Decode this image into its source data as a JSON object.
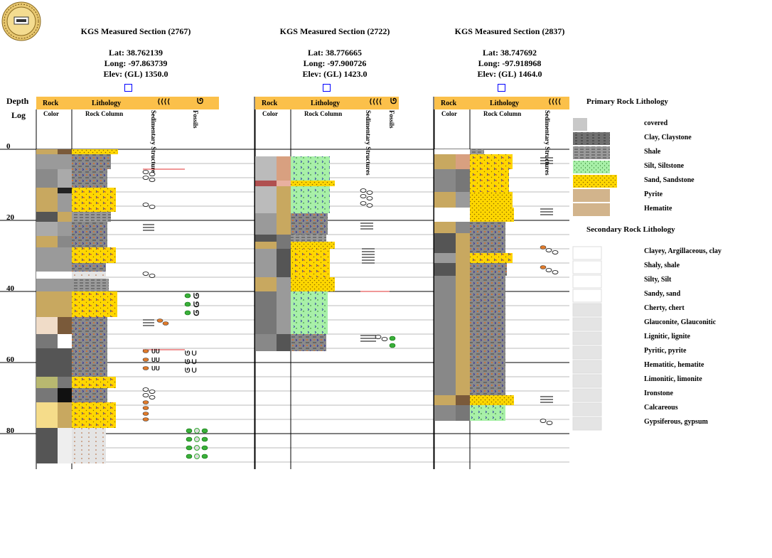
{
  "header_depth": "Depth",
  "header_log": "Log",
  "sections": [
    {
      "title": "KGS Measured Section (2767)",
      "lat": "Lat: 38.762139",
      "long": "Long: -97.863739",
      "elev": "Elev: (GL) 1350.0"
    },
    {
      "title": "KGS Measured Section (2722)",
      "lat": "Lat: 38.776665",
      "long": "Long: -97.900726",
      "elev": "Elev: (GL) 1423.0"
    },
    {
      "title": "KGS Measured Section (2837)",
      "lat": "Lat: 38.747692",
      "long": "Long: -97.918968",
      "elev": "Elev: (GL) 1464.0"
    }
  ],
  "column_headers": {
    "rock": "Rock",
    "lithology": "Lithology",
    "color": "Color",
    "rock_column": "Rock Column",
    "sedimentary_structures": "Sedimentary Structures",
    "fossils": "Fossils"
  },
  "depth_ticks": [
    "0",
    "20",
    "40",
    "60",
    "80"
  ],
  "legend": {
    "primary_title": "Primary Rock Lithology",
    "primary": [
      {
        "label": "covered",
        "color": "#c8c8c8"
      },
      {
        "label": "Clay, Claystone",
        "color": "#707070"
      },
      {
        "label": "Shale",
        "color": "#9a9a9a"
      },
      {
        "label": "Silt, Siltstone",
        "color": "#a8f0a8"
      },
      {
        "label": "Sand, Sandstone",
        "color": "#ffd700"
      },
      {
        "label": "Pyrite",
        "color": "#d2b48c"
      },
      {
        "label": "Hematite",
        "color": "#d2b48c"
      }
    ],
    "secondary_title": "Secondary Rock Lithology",
    "secondary": [
      {
        "label": "Clayey, Argillaceous, clay"
      },
      {
        "label": "Shaly, shale"
      },
      {
        "label": "Silty, Silt"
      },
      {
        "label": "Sandy, sand"
      },
      {
        "label": "Cherty, chert"
      },
      {
        "label": "Glauconite, Glauconitic"
      },
      {
        "label": "Lignitic, lignite"
      },
      {
        "label": "Pyritic, pyrite"
      },
      {
        "label": "Hematitic, hematite"
      },
      {
        "label": "Limonitic, limonite"
      },
      {
        "label": "Ironstone"
      },
      {
        "label": "Calcareous"
      },
      {
        "label": "Gypsiferous, gypsum"
      }
    ]
  },
  "colors": {
    "header_orange": "#fbc04a",
    "sand": "#ffd700",
    "silt": "#a8f0a8",
    "shale": "#9a9a9a",
    "clay": "#6e6e6e",
    "hematite_red": "#e05a2a"
  }
}
